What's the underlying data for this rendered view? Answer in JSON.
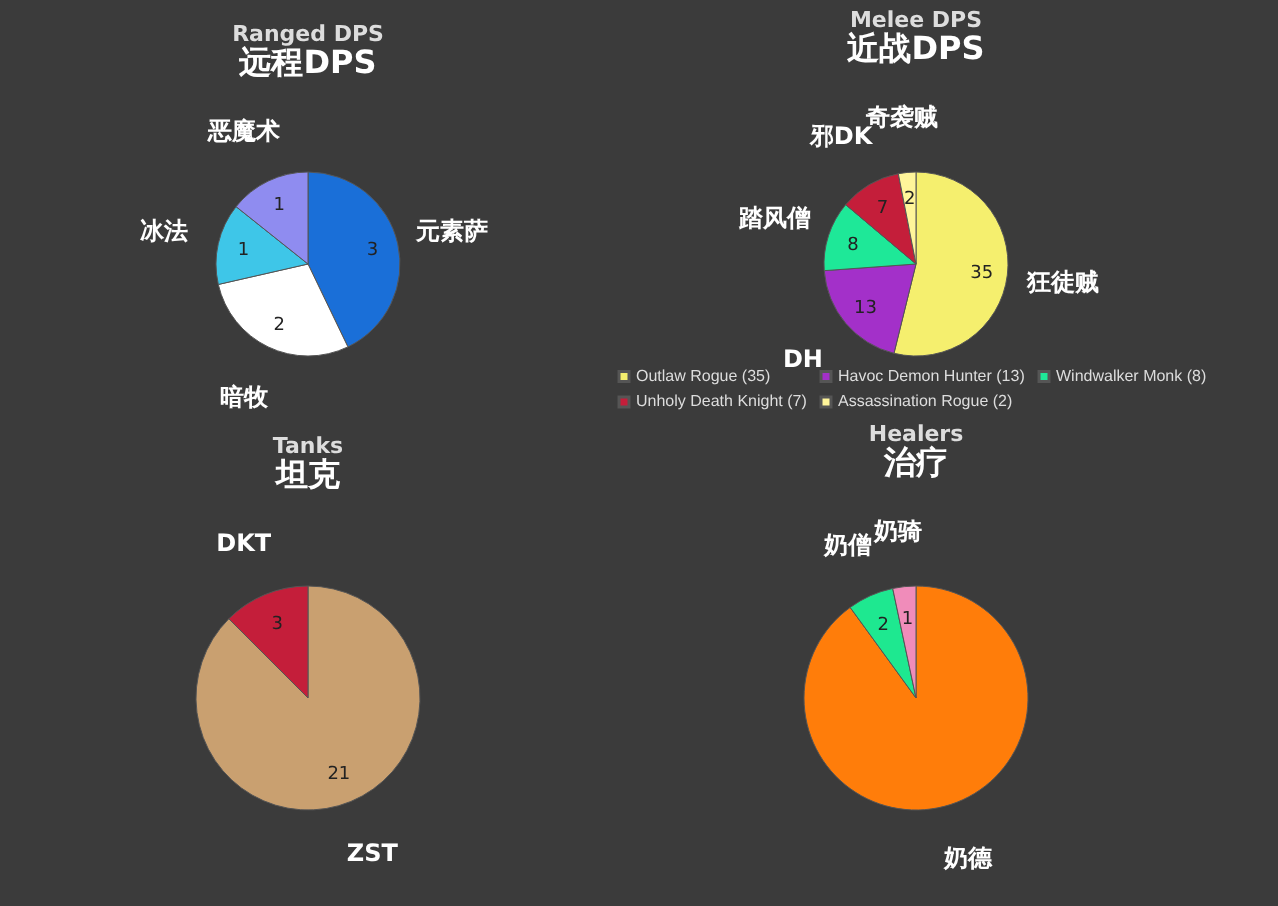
{
  "chart_data": [
    {
      "type": "pie",
      "title": "Ranged DPS",
      "subtitle": "远程DPS",
      "categories": [
        "元素萨",
        "暗牧",
        "冰法",
        "恶魔术"
      ],
      "values": [
        3,
        2,
        1,
        1
      ],
      "colors": [
        "#1a6fd8",
        "#ffffff",
        "#3ec6e8",
        "#8f8cf0"
      ],
      "data_labels": true
    },
    {
      "type": "pie",
      "title": "Melee DPS",
      "subtitle": "近战DPS",
      "categories": [
        "Outlaw Rogue (35)",
        "Havoc Demon Hunter (13)",
        "Windwalker Monk (8)",
        "Unholy Death Knight (7)",
        "Assassination Rogue (2)"
      ],
      "values": [
        35,
        13,
        8,
        7,
        2
      ],
      "colors": [
        "#f5ef6e",
        "#a330c9",
        "#1ee898",
        "#c41e3a",
        "#fff59a"
      ],
      "data_labels": true,
      "legend": "bottom",
      "annotations": [
        {
          "text": "狂徒贼",
          "x": "Outlaw Rogue (35)"
        },
        {
          "text": "DH",
          "x": "Havoc Demon Hunter (13)"
        },
        {
          "text": "踏风僧",
          "x": "Windwalker Monk (8)"
        },
        {
          "text": "邪DK",
          "x": "Unholy Death Knight (7)"
        },
        {
          "text": "奇袭贼",
          "x": "Assassination Rogue (2)"
        }
      ]
    },
    {
      "type": "pie",
      "title": "Tanks",
      "subtitle": "坦克",
      "categories": [
        "ZST",
        "DKT"
      ],
      "values": [
        21,
        3
      ],
      "colors": [
        "#c9a070",
        "#c41e3a"
      ],
      "data_labels": true
    },
    {
      "type": "pie",
      "title": "Healers",
      "subtitle": "治疗",
      "categories": [
        "奶德",
        "奶僧",
        "奶骑"
      ],
      "values": [
        27,
        2,
        1
      ],
      "colors": [
        "#ff7d0a",
        "#1ee890",
        "#f08cba"
      ],
      "value_labels": [
        null,
        "2",
        "1"
      ]
    }
  ]
}
